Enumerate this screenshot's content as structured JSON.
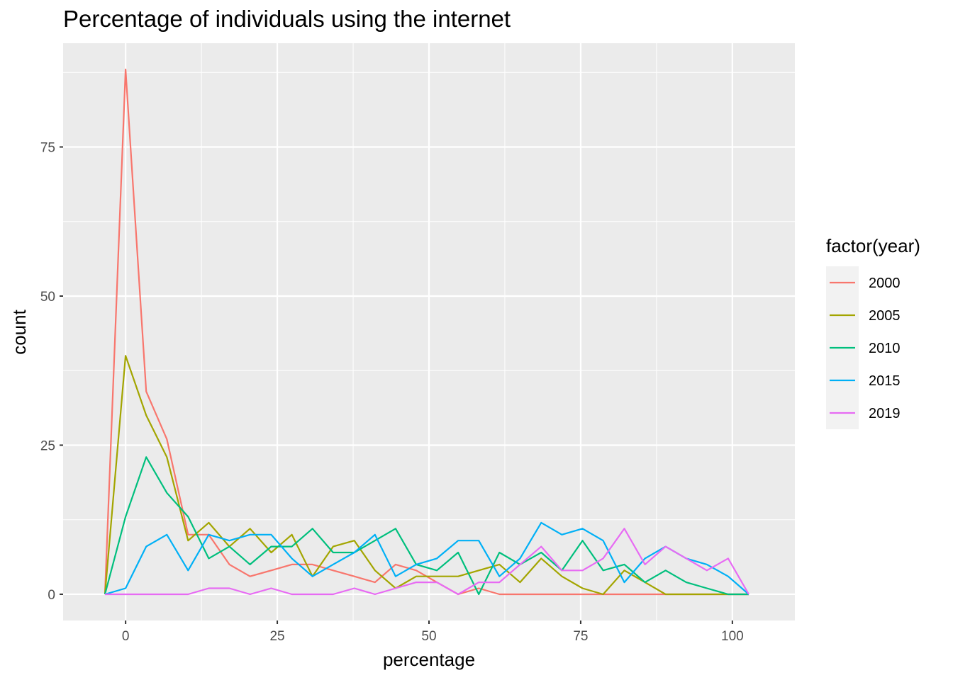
{
  "chart_data": {
    "type": "line",
    "title": "Percentage of individuals using the internet",
    "xlabel": "percentage",
    "ylabel": "count",
    "xlim": [
      -10.3,
      110.3
    ],
    "ylim": [
      -4.4,
      92.4
    ],
    "xticks": [
      0,
      25,
      50,
      75,
      100
    ],
    "yticks": [
      0,
      25,
      50,
      75
    ],
    "grid": true,
    "legend": {
      "title": "factor(year)",
      "position": "right"
    },
    "x": [
      -3.4,
      0,
      3.4,
      6.8,
      10.3,
      13.7,
      17.1,
      20.5,
      24,
      27.4,
      30.8,
      34.2,
      37.7,
      41.1,
      44.5,
      47.9,
      51.3,
      54.8,
      58.2,
      61.6,
      65,
      68.5,
      71.9,
      75.3,
      78.7,
      82.2,
      85.6,
      89,
      92.4,
      95.8,
      99.3,
      102.7
    ],
    "series": [
      {
        "name": "2000",
        "color": "#F8766D",
        "values": [
          0,
          88,
          34,
          26,
          10,
          10,
          5,
          3,
          4,
          5,
          5,
          4,
          3,
          2,
          5,
          4,
          2,
          0,
          1,
          0,
          0,
          0,
          0,
          0,
          0,
          0,
          0,
          0,
          0,
          0,
          0,
          0
        ]
      },
      {
        "name": "2005",
        "color": "#A3A500",
        "values": [
          0,
          40,
          30,
          23,
          9,
          12,
          8,
          11,
          7,
          10,
          3,
          8,
          9,
          4,
          1,
          3,
          3,
          3,
          4,
          5,
          2,
          6,
          3,
          1,
          0,
          4,
          2,
          0,
          0,
          0,
          0,
          0
        ]
      },
      {
        "name": "2010",
        "color": "#00BF7D",
        "values": [
          0,
          13,
          23,
          17,
          13,
          6,
          8,
          5,
          8,
          8,
          11,
          7,
          7,
          9,
          11,
          5,
          4,
          7,
          0,
          7,
          5,
          7,
          4,
          9,
          4,
          5,
          2,
          4,
          2,
          1,
          0,
          0
        ]
      },
      {
        "name": "2015",
        "color": "#00B0F6",
        "values": [
          0,
          1,
          8,
          10,
          4,
          10,
          9,
          10,
          10,
          6,
          3,
          5,
          7,
          10,
          3,
          5,
          6,
          9,
          9,
          3,
          6,
          12,
          10,
          11,
          9,
          2,
          6,
          8,
          6,
          5,
          3,
          0
        ]
      },
      {
        "name": "2019",
        "color": "#E76BF3",
        "values": [
          0,
          0,
          0,
          0,
          0,
          1,
          1,
          0,
          1,
          0,
          0,
          0,
          1,
          0,
          1,
          2,
          2,
          0,
          2,
          2,
          5,
          8,
          4,
          4,
          6,
          11,
          5,
          8,
          6,
          4,
          6,
          0
        ]
      }
    ]
  }
}
